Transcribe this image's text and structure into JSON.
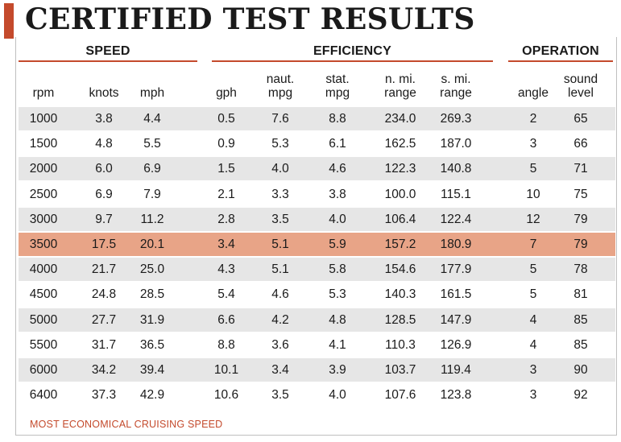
{
  "title": "CERTIFIED TEST RESULTS",
  "colors": {
    "accent": "#c44a2c",
    "highlight_row": "#e8a487",
    "stripe_row": "#e6e6e6",
    "rule": "#c44a2c",
    "footnote": "#c44a2c"
  },
  "chart_data": {
    "type": "table",
    "groups": [
      {
        "name": "SPEED",
        "columns": [
          "rpm",
          "knots",
          "mph"
        ]
      },
      {
        "name": "EFFICIENCY",
        "columns": [
          "gph",
          "naut. mpg",
          "stat. mpg",
          "n. mi. range",
          "s. mi. range"
        ]
      },
      {
        "name": "OPERATION",
        "columns": [
          "angle",
          "sound level"
        ]
      }
    ],
    "columns": [
      {
        "group": "SPEED",
        "lines": [
          "rpm"
        ]
      },
      {
        "group": "SPEED",
        "lines": [
          "knots"
        ]
      },
      {
        "group": "SPEED",
        "lines": [
          "mph"
        ]
      },
      {
        "group": "EFFICIENCY",
        "lines": [
          "gph"
        ]
      },
      {
        "group": "EFFICIENCY",
        "lines": [
          "naut.",
          "mpg"
        ]
      },
      {
        "group": "EFFICIENCY",
        "lines": [
          "stat.",
          "mpg"
        ]
      },
      {
        "group": "EFFICIENCY",
        "lines": [
          "n. mi.",
          "range"
        ]
      },
      {
        "group": "EFFICIENCY",
        "lines": [
          "s. mi.",
          "range"
        ]
      },
      {
        "group": "OPERATION",
        "lines": [
          "angle"
        ]
      },
      {
        "group": "OPERATION",
        "lines": [
          "sound",
          "level"
        ]
      }
    ],
    "rows": [
      [
        "1000",
        "3.8",
        "4.4",
        "0.5",
        "7.6",
        "8.8",
        "234.0",
        "269.3",
        "2",
        "65"
      ],
      [
        "1500",
        "4.8",
        "5.5",
        "0.9",
        "5.3",
        "6.1",
        "162.5",
        "187.0",
        "3",
        "66"
      ],
      [
        "2000",
        "6.0",
        "6.9",
        "1.5",
        "4.0",
        "4.6",
        "122.3",
        "140.8",
        "5",
        "71"
      ],
      [
        "2500",
        "6.9",
        "7.9",
        "2.1",
        "3.3",
        "3.8",
        "100.0",
        "115.1",
        "10",
        "75"
      ],
      [
        "3000",
        "9.7",
        "11.2",
        "2.8",
        "3.5",
        "4.0",
        "106.4",
        "122.4",
        "12",
        "79"
      ],
      [
        "3500",
        "17.5",
        "20.1",
        "3.4",
        "5.1",
        "5.9",
        "157.2",
        "180.9",
        "7",
        "79"
      ],
      [
        "4000",
        "21.7",
        "25.0",
        "4.3",
        "5.1",
        "5.8",
        "154.6",
        "177.9",
        "5",
        "78"
      ],
      [
        "4500",
        "24.8",
        "28.5",
        "5.4",
        "4.6",
        "5.3",
        "140.3",
        "161.5",
        "5",
        "81"
      ],
      [
        "5000",
        "27.7",
        "31.9",
        "6.6",
        "4.2",
        "4.8",
        "128.5",
        "147.9",
        "4",
        "85"
      ],
      [
        "5500",
        "31.7",
        "36.5",
        "8.8",
        "3.6",
        "4.1",
        "110.3",
        "126.9",
        "4",
        "85"
      ],
      [
        "6000",
        "34.2",
        "39.4",
        "10.1",
        "3.4",
        "3.9",
        "103.7",
        "119.4",
        "3",
        "90"
      ],
      [
        "6400",
        "37.3",
        "42.9",
        "10.6",
        "3.5",
        "4.0",
        "107.6",
        "123.8",
        "3",
        "92"
      ]
    ],
    "highlighted_row": 5,
    "striped": true
  },
  "footnote": "MOST ECONOMICAL CRUISING SPEED"
}
